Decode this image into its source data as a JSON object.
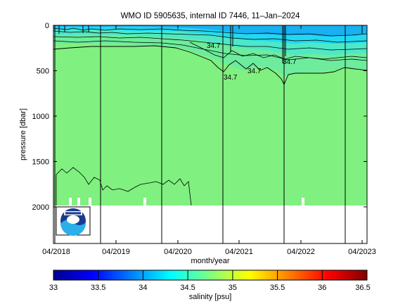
{
  "chart_data": {
    "type": "heatmap",
    "title": "WMO ID 5905635, internal ID 7446, 11–Jan–2024",
    "xlabel": "month/year",
    "ylabel": "pressure [dbar]",
    "x_ticks": [
      "04/2018",
      "04/2019",
      "04/2020",
      "04/2021",
      "04/2022",
      "04/2023"
    ],
    "y_ticks": [
      0,
      500,
      1000,
      1500,
      2000
    ],
    "ylim": [
      2400,
      0
    ],
    "y_reversed": true,
    "colorbar": {
      "label": "salinity [psu]",
      "range": [
        33,
        36.5
      ],
      "ticks": [
        "33",
        "33.5",
        "34",
        "34.5",
        "35",
        "35.5",
        "36",
        "36.5"
      ]
    },
    "dominant_salinity_psu": 34.7,
    "data_max_pressure_dbar": 2000,
    "contour_labels": [
      "34.7",
      "34.7",
      "34.7",
      "34.7"
    ],
    "profile_lines": [
      "04/2018",
      "10/2018",
      "07/2019",
      "05/2020",
      "01/2021",
      "11/2021",
      "08/2022"
    ],
    "colors": {
      "background_field": "#80f080",
      "surface_fresh": "#18b0f0",
      "colorbar_low": "#00008f",
      "colorbar_mid": "#80ff80",
      "colorbar_high": "#800000"
    },
    "logo": "noaa-logo-icon"
  }
}
